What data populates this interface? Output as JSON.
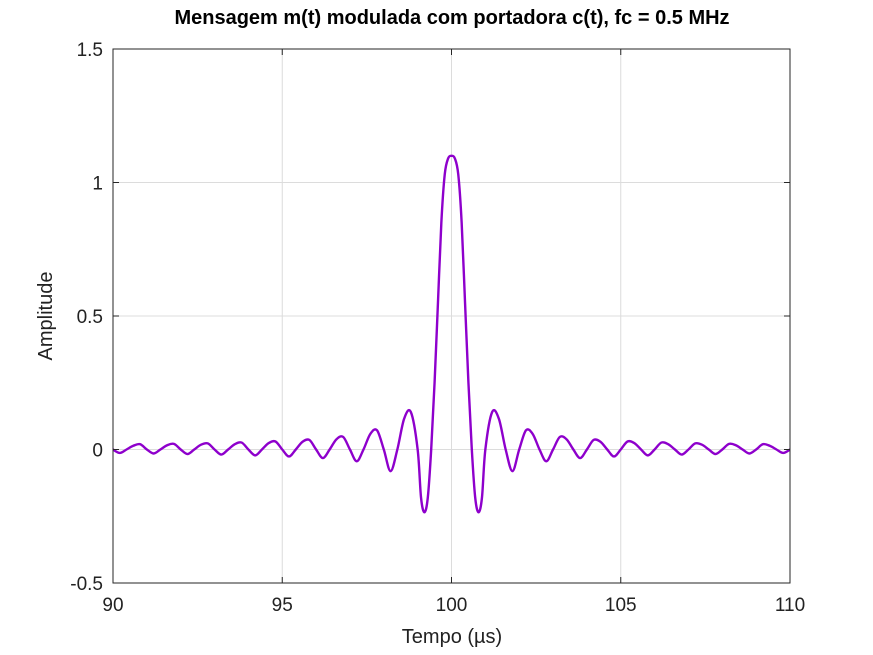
{
  "chart_data": {
    "type": "line",
    "title": "Mensagem m(t) modulada com portadora c(t), fc = 0.5 MHz",
    "xlabel": "Tempo (µs)",
    "ylabel": "Amplitude",
    "xlim": [
      90,
      110
    ],
    "ylim": [
      -0.5,
      1.5
    ],
    "xticks": [
      "90",
      "95",
      "100",
      "105",
      "110"
    ],
    "yticks": [
      "-0.5",
      "0",
      "0.5",
      "1",
      "1.5"
    ],
    "grid": true,
    "legend": "none",
    "line_color": "#8e00cc",
    "series": [
      {
        "x": [
          90,
          90.2,
          90.4,
          90.6,
          90.8,
          91.0,
          91.2,
          91.4,
          91.6,
          91.8,
          92.0,
          92.2,
          92.4,
          92.6,
          92.8,
          93.0,
          93.2,
          93.4,
          93.6,
          93.8,
          94.0,
          94.2,
          94.4,
          94.6,
          94.8,
          95.0,
          95.2,
          95.4,
          95.6,
          95.8,
          96.0,
          96.2,
          96.4,
          96.6,
          96.8,
          97.0,
          97.2,
          97.4,
          97.6,
          97.8,
          98.0,
          98.2,
          98.4,
          98.6,
          98.8,
          99.0,
          99.1,
          99.2,
          99.3,
          99.4,
          99.5,
          99.6,
          99.7,
          99.8,
          99.9,
          100.0,
          100.1,
          100.2,
          100.3,
          100.4,
          100.5,
          100.6,
          100.7,
          100.8,
          100.9,
          101.0,
          101.2,
          101.4,
          101.6,
          101.8,
          102.0,
          102.2,
          102.4,
          102.6,
          102.8,
          103.0,
          103.2,
          103.4,
          103.6,
          103.8,
          104.0,
          104.2,
          104.4,
          104.6,
          104.8,
          105.0,
          105.2,
          105.4,
          105.6,
          105.8,
          106.0,
          106.2,
          106.4,
          106.6,
          106.8,
          107.0,
          107.2,
          107.4,
          107.6,
          107.8,
          108.0,
          108.2,
          108.4,
          108.6,
          108.8,
          109.0,
          109.2,
          109.4,
          109.6,
          109.8,
          110.0
        ],
        "y": [
          0.0,
          -0.013,
          0.0,
          0.014,
          0.02,
          0.0,
          -0.015,
          0.0,
          0.016,
          0.021,
          0.0,
          -0.017,
          0.0,
          0.018,
          0.023,
          0.0,
          -0.019,
          0.0,
          0.02,
          0.026,
          0.0,
          -0.022,
          0.0,
          0.024,
          0.03,
          0.0,
          -0.026,
          0.0,
          0.029,
          0.036,
          0.0,
          -0.032,
          0.0,
          0.038,
          0.047,
          0.0,
          -0.044,
          0.0,
          0.058,
          0.072,
          0.0,
          -0.081,
          0.0,
          0.115,
          0.14,
          0.0,
          -0.18,
          -0.235,
          -0.18,
          0.0,
          0.25,
          0.55,
          0.85,
          1.03,
          1.09,
          1.1,
          1.09,
          1.03,
          0.85,
          0.55,
          0.25,
          0.0,
          -0.18,
          -0.235,
          -0.18,
          0.0,
          0.14,
          0.115,
          0.0,
          -0.081,
          0.0,
          0.072,
          0.058,
          0.0,
          -0.044,
          0.0,
          0.047,
          0.038,
          0.0,
          -0.032,
          0.0,
          0.036,
          0.029,
          0.0,
          -0.026,
          0.0,
          0.03,
          0.024,
          0.0,
          -0.022,
          0.0,
          0.026,
          0.02,
          0.0,
          -0.019,
          0.0,
          0.023,
          0.018,
          0.0,
          -0.017,
          0.0,
          0.021,
          0.016,
          0.0,
          -0.015,
          0.0,
          0.02,
          0.014,
          0.0,
          -0.013,
          0.0
        ]
      }
    ]
  }
}
